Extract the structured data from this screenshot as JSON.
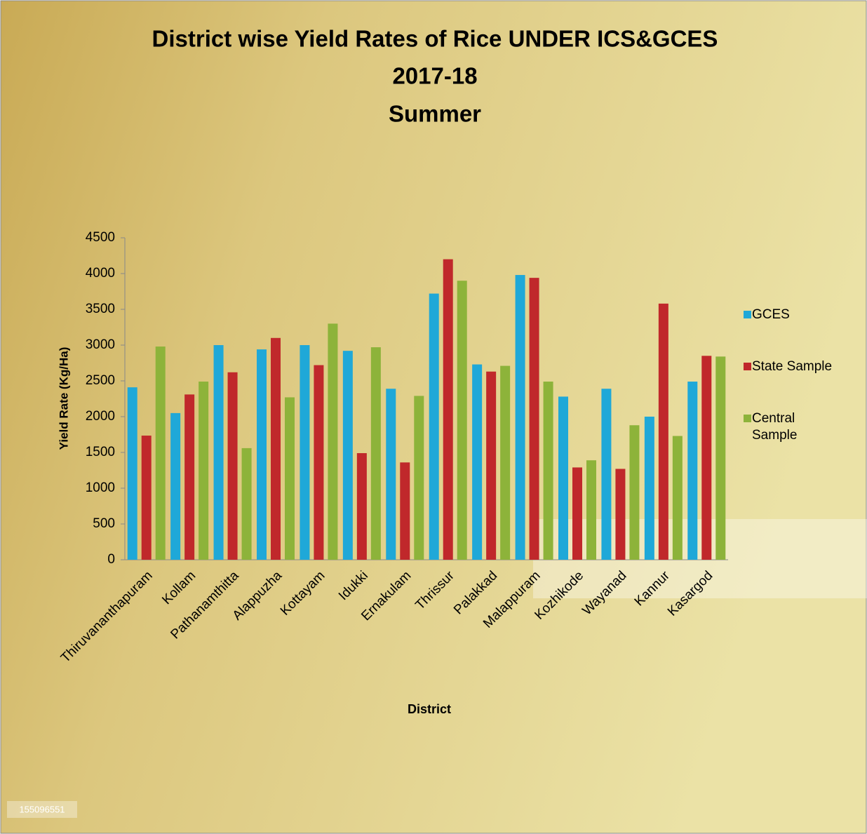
{
  "chart_data": {
    "type": "bar",
    "title": [
      "District wise Yield Rates of Rice UNDER ICS&GCES",
      "2017-18",
      "Summer"
    ],
    "x_label": "District",
    "y_label": "Yield Rate (Kg/Ha)",
    "categories": [
      "Thiruvananthapuram",
      "Kollam",
      "Pathanamthitta",
      "Alappuzha",
      "Kottayam",
      "Idukki",
      "Ernakulam",
      "Thrissur",
      "Palakkad",
      "Malappuram",
      "Kozhikode",
      "Wayanad",
      "Kannur",
      "Kasargod"
    ],
    "series": [
      {
        "name": "GCES",
        "color": "#1fa8d8",
        "values": [
          2410,
          2050,
          3000,
          2940,
          3000,
          2920,
          2390,
          3720,
          2730,
          3980,
          2280,
          2390,
          2000,
          2490
        ]
      },
      {
        "name": "State Sample",
        "color": "#c0282b",
        "values": [
          1735,
          2310,
          2620,
          3100,
          2720,
          1490,
          1360,
          4200,
          2630,
          3940,
          1290,
          1270,
          3580,
          2850
        ]
      },
      {
        "name": "Central Sample",
        "color": "#8db33a",
        "values": [
          2980,
          2490,
          1560,
          2270,
          3300,
          2970,
          2290,
          3900,
          2710,
          2490,
          1390,
          1880,
          1730,
          2840
        ]
      }
    ],
    "ylim": [
      0,
      4500
    ],
    "yticks": [
      0,
      500,
      1000,
      1500,
      2000,
      2500,
      3000,
      3500,
      4000,
      4500
    ],
    "grid": false,
    "legend": "right",
    "annotations": [
      "155096551"
    ]
  }
}
